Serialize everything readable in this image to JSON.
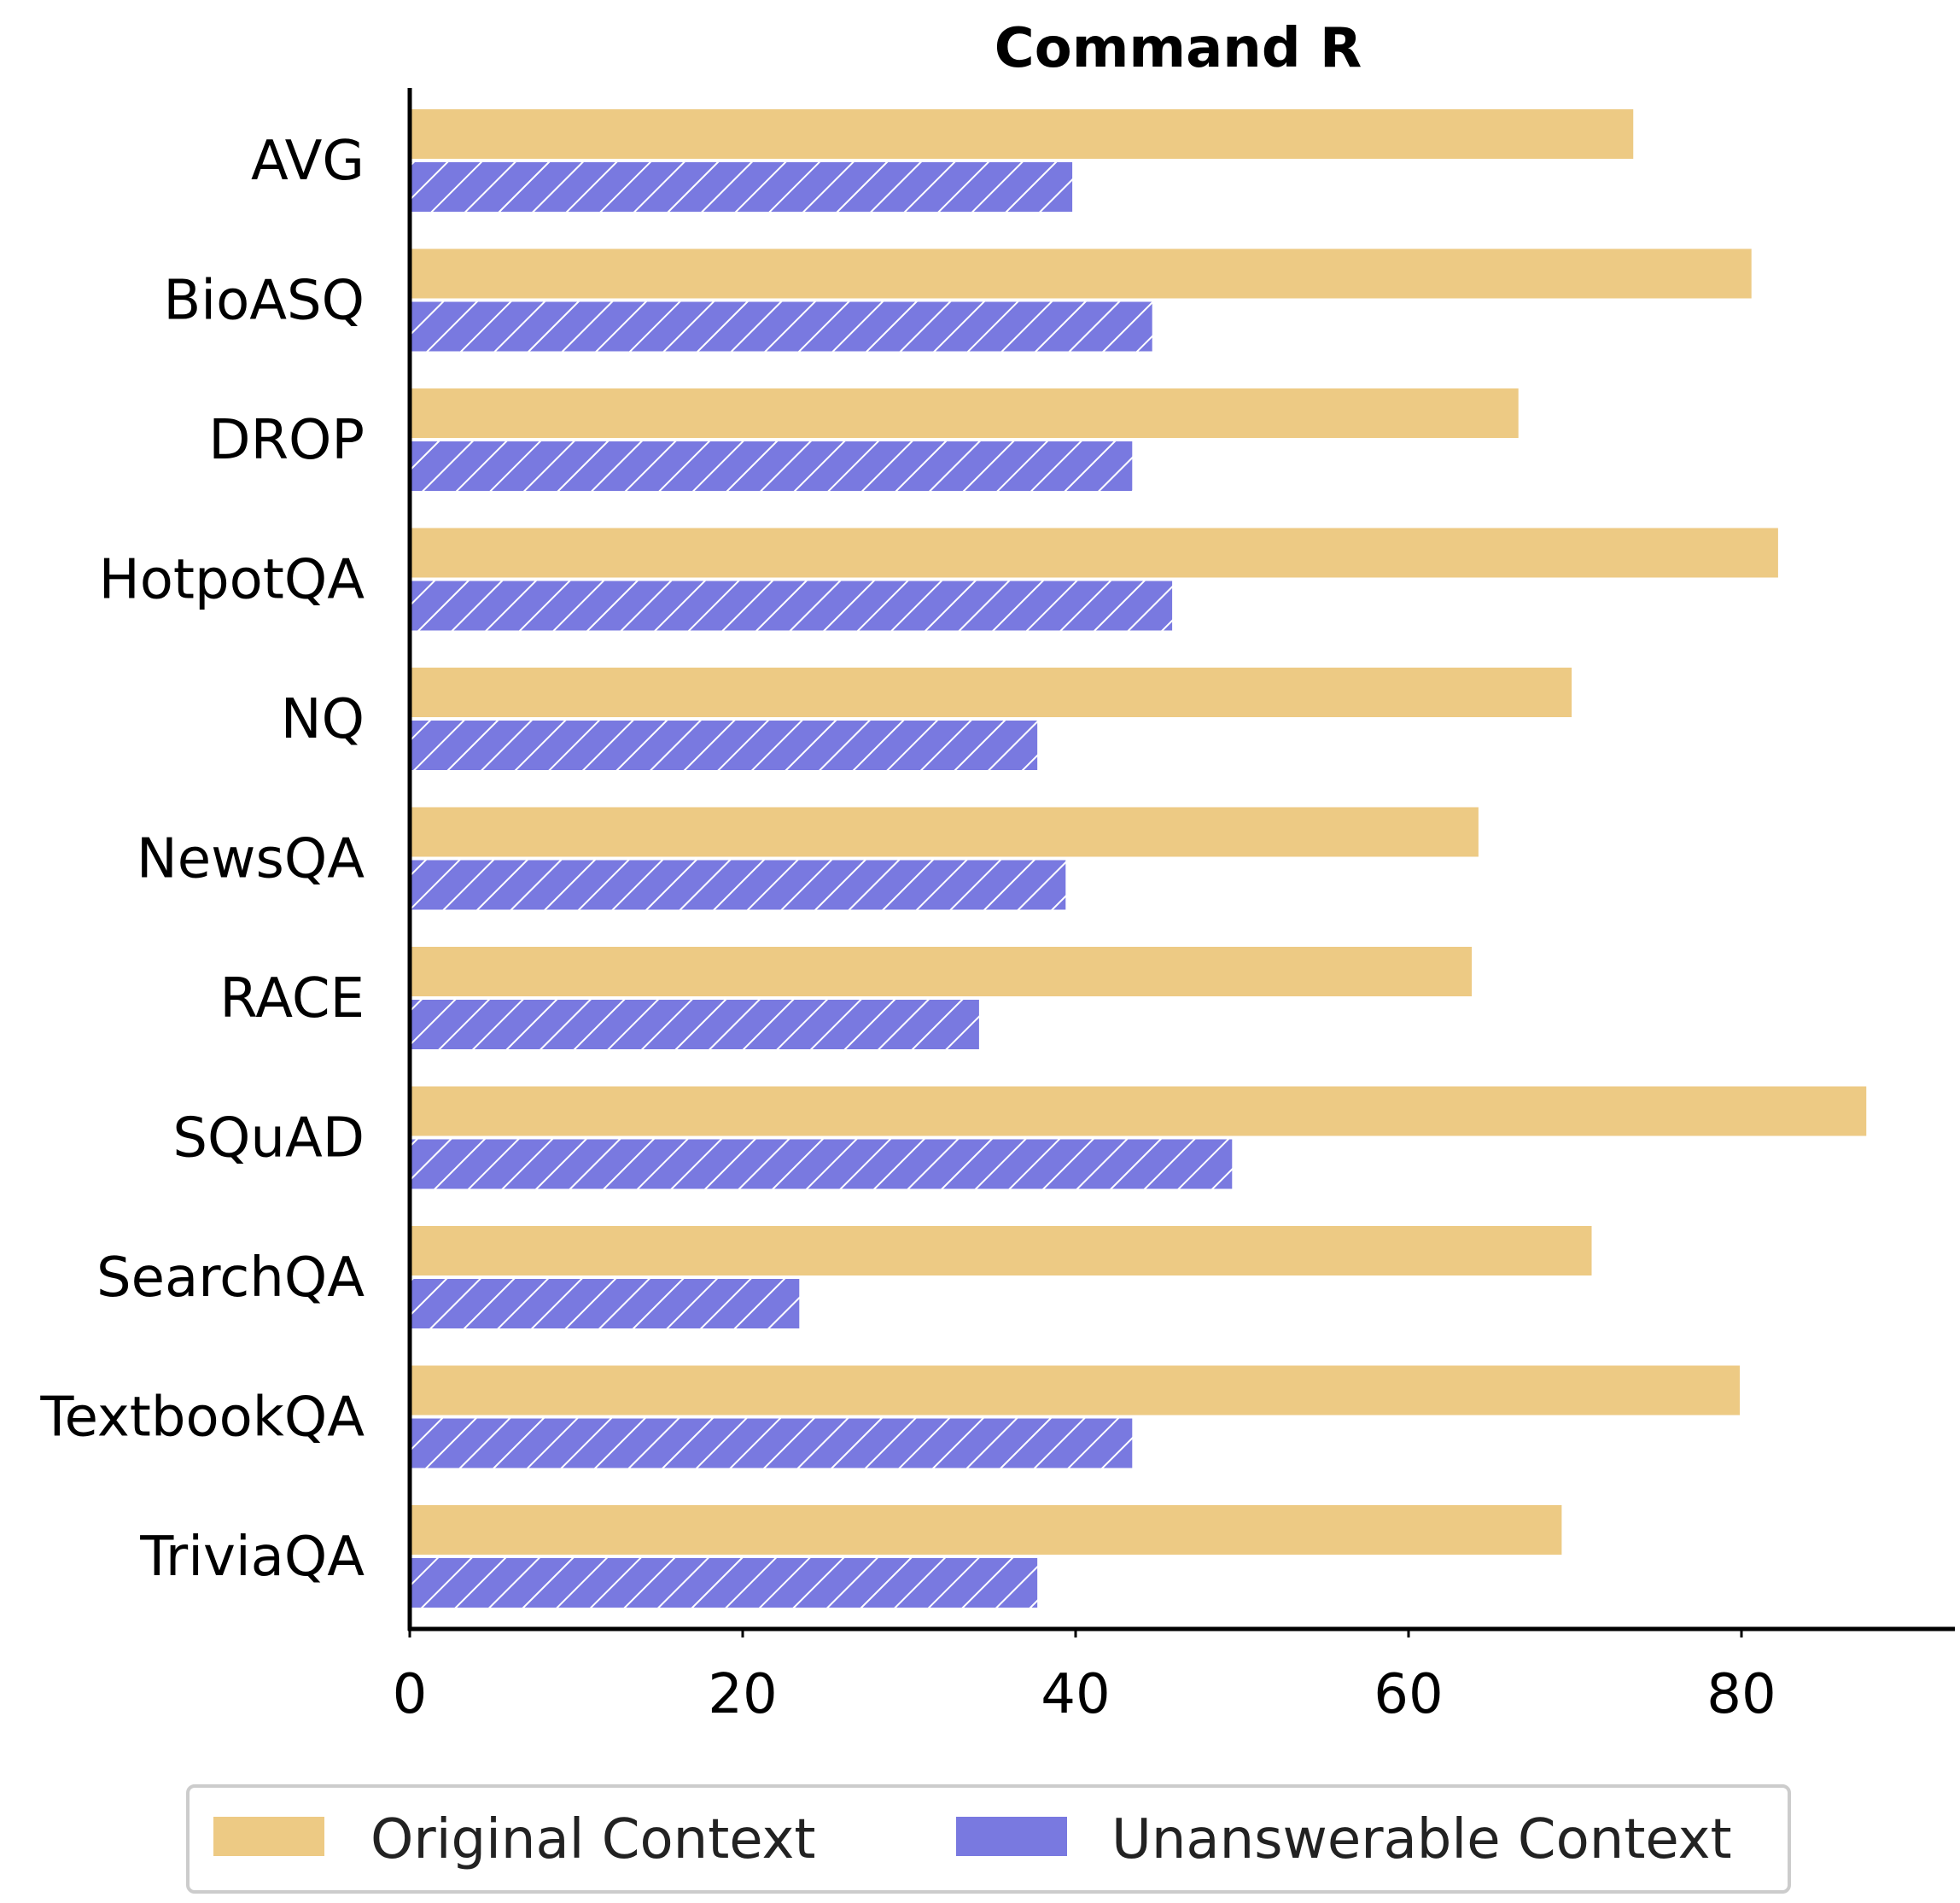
{
  "chart_data": {
    "type": "bar",
    "orientation": "horizontal",
    "title": "Command R",
    "xlabel": "",
    "ylabel": "",
    "xlim": [
      0,
      92
    ],
    "xticks": [
      0,
      20,
      40,
      60,
      80
    ],
    "categories": [
      "AVG",
      "BioASQ",
      "DROP",
      "HotpotQA",
      "NQ",
      "NewsQA",
      "RACE",
      "SQuAD",
      "SearchQA",
      "TextbookQA",
      "TriviaQA"
    ],
    "series": [
      {
        "name": "Original Context",
        "color": "#edca84",
        "hatch": "none",
        "values": [
          73.5,
          80.6,
          66.6,
          82.2,
          69.8,
          64.2,
          63.8,
          87.5,
          71.0,
          79.9,
          69.2
        ]
      },
      {
        "name": "Unanswerable Context",
        "color": "#7979e0",
        "hatch": "diagonal",
        "values": [
          39.8,
          44.6,
          43.4,
          45.8,
          37.7,
          39.4,
          34.2,
          49.4,
          23.4,
          43.4,
          37.7
        ]
      }
    ],
    "legend_position": "bottom-center",
    "grid": false
  }
}
